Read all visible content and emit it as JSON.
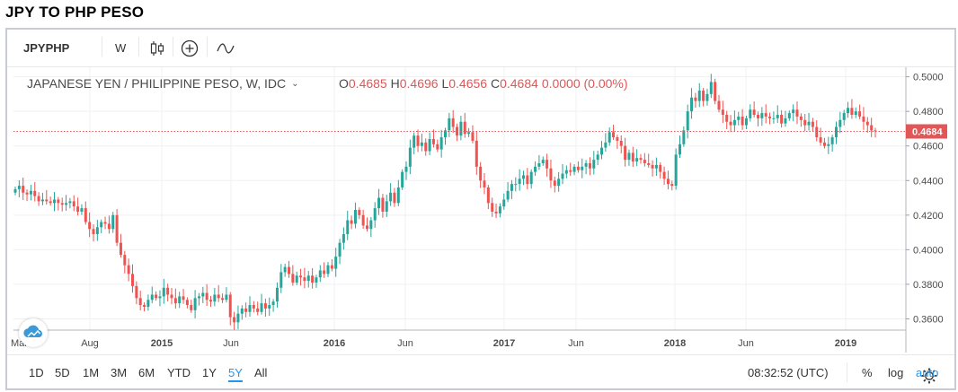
{
  "page": {
    "title": "JPY TO PHP PESO"
  },
  "toolbar": {
    "symbol": "JPYPHP",
    "interval": "W",
    "icons": [
      "candlestick-icon",
      "add-indicator-icon",
      "compare-line-icon"
    ]
  },
  "legend": {
    "name": "JAPANESE YEN / PHILIPPINE PESO, W, IDC",
    "o_label": "O",
    "o_value": "0.4685",
    "h_label": "H",
    "h_value": "0.4696",
    "l_label": "L",
    "l_value": "0.4656",
    "c_label": "C",
    "c_value": "0.4684",
    "change": "0.0000 (0.00%)"
  },
  "price_tag": "0.4684",
  "bottom_toolbar": {
    "ranges": [
      "1D",
      "5D",
      "1M",
      "3M",
      "6M",
      "YTD",
      "1Y",
      "5Y",
      "All"
    ],
    "active_range": "5Y",
    "time": "08:32:52 (UTC)",
    "percent": "%",
    "log": "log",
    "auto": "auto"
  },
  "colors": {
    "up": "#26a69a",
    "down": "#ef5350",
    "accent": "#2196f3",
    "price_line": "#e15656"
  },
  "chart_data": {
    "type": "candlestick",
    "title": "JAPANESE YEN / PHILIPPINE PESO, W, IDC",
    "x_tick_labels": [
      "Mar",
      "Aug",
      "2015",
      "Jun",
      "2016",
      "Jun",
      "2017",
      "Jun",
      "2018",
      "Jun",
      "2019"
    ],
    "y_tick_labels": [
      "0.5000",
      "0.4800",
      "0.4600",
      "0.4400",
      "0.4200",
      "0.4000",
      "0.3800",
      "0.3600"
    ],
    "ylim": [
      0.3535,
      0.5055
    ],
    "grid": true,
    "last_close": 0.4684,
    "closes": [
      0.435,
      0.437,
      0.433,
      0.432,
      0.434,
      0.431,
      0.428,
      0.429,
      0.428,
      0.427,
      0.429,
      0.427,
      0.426,
      0.427,
      0.428,
      0.425,
      0.422,
      0.424,
      0.416,
      0.412,
      0.409,
      0.413,
      0.416,
      0.415,
      0.412,
      0.42,
      0.404,
      0.397,
      0.391,
      0.386,
      0.379,
      0.372,
      0.368,
      0.367,
      0.371,
      0.374,
      0.372,
      0.373,
      0.378,
      0.374,
      0.372,
      0.369,
      0.373,
      0.371,
      0.368,
      0.365,
      0.372,
      0.373,
      0.375,
      0.371,
      0.37,
      0.374,
      0.372,
      0.371,
      0.374,
      0.361,
      0.358,
      0.363,
      0.366,
      0.364,
      0.368,
      0.366,
      0.364,
      0.369,
      0.366,
      0.368,
      0.37,
      0.378,
      0.387,
      0.39,
      0.386,
      0.381,
      0.385,
      0.384,
      0.382,
      0.385,
      0.381,
      0.384,
      0.388,
      0.386,
      0.391,
      0.389,
      0.396,
      0.404,
      0.409,
      0.417,
      0.415,
      0.423,
      0.42,
      0.414,
      0.412,
      0.417,
      0.424,
      0.43,
      0.422,
      0.428,
      0.433,
      0.427,
      0.436,
      0.445,
      0.448,
      0.459,
      0.466,
      0.46,
      0.462,
      0.457,
      0.464,
      0.461,
      0.458,
      0.465,
      0.469,
      0.476,
      0.471,
      0.466,
      0.474,
      0.467,
      0.468,
      0.463,
      0.448,
      0.44,
      0.436,
      0.427,
      0.422,
      0.421,
      0.425,
      0.429,
      0.434,
      0.438,
      0.438,
      0.441,
      0.443,
      0.438,
      0.445,
      0.448,
      0.45,
      0.452,
      0.447,
      0.44,
      0.437,
      0.441,
      0.444,
      0.446,
      0.445,
      0.448,
      0.446,
      0.448,
      0.45,
      0.447,
      0.452,
      0.455,
      0.459,
      0.462,
      0.468,
      0.465,
      0.463,
      0.46,
      0.452,
      0.456,
      0.451,
      0.453,
      0.452,
      0.45,
      0.449,
      0.447,
      0.449,
      0.445,
      0.441,
      0.438,
      0.437,
      0.455,
      0.461,
      0.469,
      0.48,
      0.488,
      0.486,
      0.492,
      0.486,
      0.49,
      0.497,
      0.486,
      0.481,
      0.478,
      0.474,
      0.472,
      0.475,
      0.477,
      0.472,
      0.476,
      0.481,
      0.478,
      0.476,
      0.479,
      0.477,
      0.476,
      0.476,
      0.478,
      0.473,
      0.476,
      0.479,
      0.481,
      0.477,
      0.475,
      0.472,
      0.474,
      0.471,
      0.465,
      0.462,
      0.46,
      0.461,
      0.465,
      0.471,
      0.475,
      0.479,
      0.482,
      0.478,
      0.48,
      0.477,
      0.474,
      0.472,
      0.469,
      0.4684
    ]
  }
}
